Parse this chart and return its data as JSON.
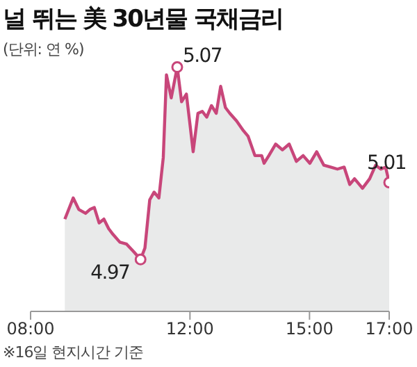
{
  "chart_data": {
    "type": "area",
    "title": "널 뛰는 美 30년물 국채금리",
    "subtitle": "(단위: 연 %)",
    "annotations": [
      "※16일 현지시간 기준"
    ],
    "x": [
      8.86,
      9.07,
      9.21,
      9.38,
      9.49,
      9.6,
      9.72,
      9.84,
      9.96,
      10.07,
      10.24,
      10.41,
      10.59,
      10.76,
      10.87,
      10.99,
      11.1,
      11.22,
      11.33,
      11.41,
      11.53,
      11.68,
      11.79,
      11.91,
      11.99,
      12.08,
      12.2,
      12.31,
      12.42,
      12.54,
      12.66,
      12.77,
      12.89,
      13.0,
      13.17,
      13.34,
      13.46,
      13.63,
      13.8,
      13.86,
      13.98,
      14.15,
      14.32,
      14.49,
      14.67,
      14.84,
      15.01,
      15.18,
      15.36,
      15.53,
      15.7,
      15.87,
      16.01,
      16.13,
      16.33,
      16.51,
      16.66,
      16.79,
      16.91,
      17.0
    ],
    "series": [
      {
        "color": "#c8467a",
        "values": [
          4.991,
          5.002,
          4.996,
          4.994,
          4.996,
          4.997,
          4.989,
          4.991,
          4.986,
          4.983,
          4.979,
          4.978,
          4.974,
          4.97,
          4.976,
          5.001,
          5.005,
          5.002,
          5.023,
          5.066,
          5.054,
          5.07,
          5.052,
          5.056,
          5.042,
          5.026,
          5.046,
          5.047,
          5.044,
          5.05,
          5.046,
          5.06,
          5.049,
          5.046,
          5.042,
          5.037,
          5.034,
          5.024,
          5.024,
          5.02,
          5.024,
          5.03,
          5.027,
          5.03,
          5.021,
          5.024,
          5.02,
          5.026,
          5.019,
          5.018,
          5.017,
          5.018,
          5.009,
          5.012,
          5.007,
          5.012,
          5.019,
          5.017,
          5.018,
          5.01
        ],
        "value_labels": [
          null,
          null,
          null,
          null,
          null,
          null,
          null,
          null,
          null,
          null,
          null,
          null,
          null,
          "4.97",
          null,
          null,
          null,
          null,
          null,
          null,
          null,
          "5.07",
          null,
          null,
          null,
          null,
          null,
          null,
          null,
          null,
          null,
          null,
          null,
          null,
          null,
          null,
          null,
          null,
          null,
          null,
          null,
          null,
          null,
          null,
          null,
          null,
          null,
          null,
          null,
          null,
          null,
          null,
          null,
          null,
          null,
          null,
          null,
          null,
          null,
          "5.01"
        ]
      }
    ],
    "xlim": [
      8,
      17
    ],
    "xticks": [
      {
        "value": 8,
        "label": "08:00"
      },
      {
        "value": 12,
        "label": "12:00"
      },
      {
        "value": 15,
        "label": "15:00"
      },
      {
        "value": 17,
        "label": "17:00"
      }
    ],
    "tick_labels": "x"
  }
}
